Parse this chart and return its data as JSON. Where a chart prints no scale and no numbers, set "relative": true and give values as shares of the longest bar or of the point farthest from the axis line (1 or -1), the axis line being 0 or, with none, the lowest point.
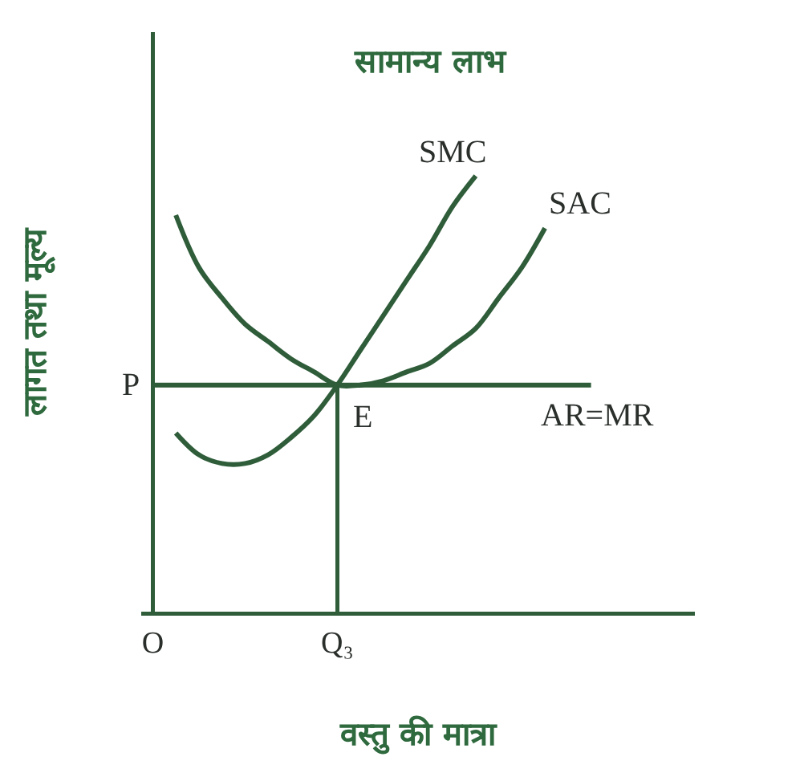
{
  "chart_data": {
    "type": "line",
    "title": "सामान्य लाभ",
    "xlabel": "वस्तु की मात्रा",
    "ylabel": "लागत तथा मूल्य",
    "relative": true,
    "categories": [
      "O",
      null,
      null,
      null,
      null,
      null,
      null,
      null,
      "Q₃",
      null,
      null,
      null,
      null,
      null,
      null,
      null,
      null,
      null,
      null,
      null,
      null,
      null,
      null,
      null
    ],
    "series": [
      {
        "name": "SMC",
        "color": "#2f5d3a",
        "values": [
          null,
          0.41,
          0.36,
          0.34,
          0.34,
          0.36,
          0.4,
          0.45,
          0.52,
          0.6,
          0.68,
          0.76,
          0.84,
          0.93,
          1.0,
          null,
          null,
          null,
          null,
          null,
          null,
          null,
          null,
          null
        ]
      },
      {
        "name": "SAC",
        "color": "#2f5d3a",
        "values": [
          null,
          0.91,
          0.79,
          0.72,
          0.66,
          0.62,
          0.58,
          0.55,
          0.52,
          0.52,
          0.53,
          0.55,
          0.57,
          0.61,
          0.65,
          0.72,
          0.79,
          0.88,
          null,
          null,
          null,
          null,
          null,
          null
        ]
      },
      {
        "name": "AR=MR",
        "color": "#2f5d3a",
        "values": [
          0.52,
          0.52,
          0.52,
          0.52,
          0.52,
          0.52,
          0.52,
          0.52,
          0.52,
          0.52,
          0.52,
          0.52,
          0.52,
          0.52,
          0.52,
          0.52,
          0.52,
          0.52,
          0.52,
          0.52,
          null,
          null,
          null,
          null
        ]
      },
      {
        "type": "bar",
        "color": "#2f5d3a",
        "values": [
          null,
          null,
          null,
          null,
          null,
          null,
          null,
          null,
          0.52,
          null,
          null,
          null,
          null,
          null,
          null,
          null,
          null,
          null,
          null,
          null,
          null,
          null,
          null,
          null
        ]
      }
    ],
    "annotations": [
      {
        "text": "P",
        "x": "O",
        "y": 0.52
      },
      {
        "text": "E",
        "x": "Q₃",
        "y": 0.52
      }
    ]
  }
}
